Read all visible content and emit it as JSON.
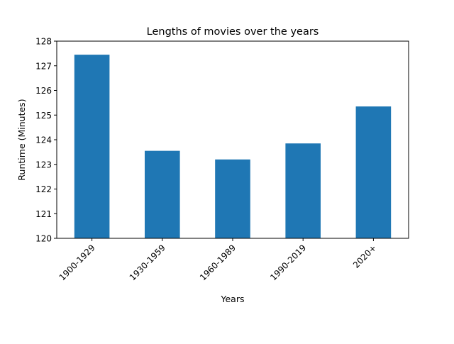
{
  "chart_data": {
    "type": "bar",
    "title": "Lengths of movies over the years",
    "xlabel": "Years",
    "ylabel": "Runtime (Minutes)",
    "categories": [
      "1900-1929",
      "1930-1959",
      "1960-1989",
      "1990-2019",
      "2020+"
    ],
    "values": [
      127.45,
      123.55,
      123.2,
      123.85,
      125.35
    ],
    "ylim": [
      120,
      128
    ],
    "yticks": [
      120,
      121,
      122,
      123,
      124,
      125,
      126,
      127,
      128
    ],
    "grid": false,
    "legend": "none",
    "bar_color": "#1f77b4",
    "xtick_rotation_deg": 45
  }
}
